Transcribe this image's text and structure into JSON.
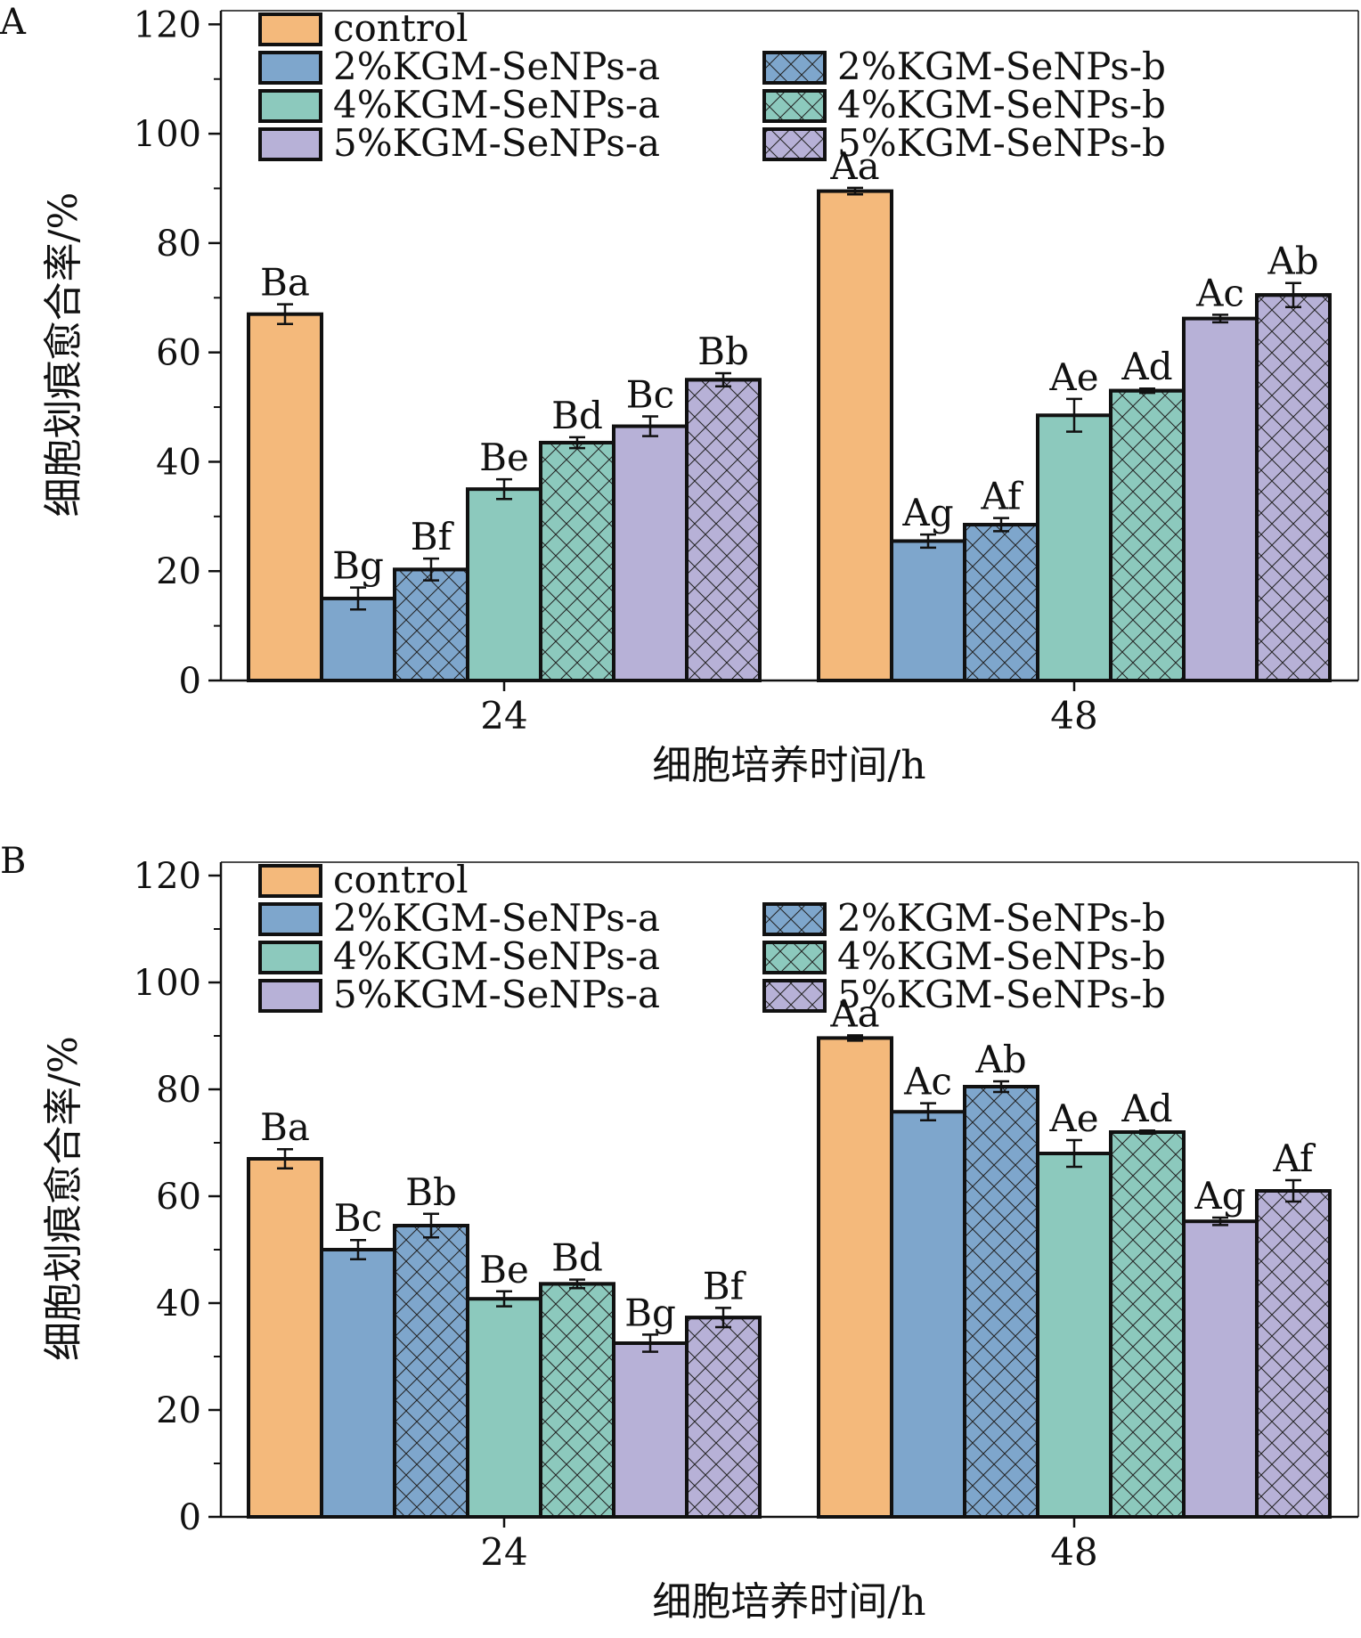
{
  "colors": {
    "control": "#f4b97b",
    "group_2": "#7ea6cc",
    "group_4": "#8cc9bd",
    "group_5": "#b7b1d7",
    "stroke": "#111111"
  },
  "chart_data": [
    {
      "panel_label": "A",
      "type": "bar",
      "xlabel": "细胞培养时间/h",
      "ylabel": "细胞划痕愈合率/%",
      "categories": [
        "24",
        "48"
      ],
      "ylim": [
        0,
        120
      ],
      "yticks": [
        0,
        20,
        40,
        60,
        80,
        100,
        120
      ],
      "legend_position": "top",
      "series": [
        {
          "name": "control",
          "color": "#f4b97b",
          "hatch": false,
          "values": [
            67,
            89.5
          ],
          "errors": [
            1.8,
            0.6
          ],
          "labels": [
            "Ba",
            "Aa"
          ]
        },
        {
          "name": "2%KGM-SeNPs-a",
          "color": "#7ea6cc",
          "hatch": false,
          "values": [
            15,
            25.5
          ],
          "errors": [
            2.0,
            1.2
          ],
          "labels": [
            "Bg",
            "Ag"
          ]
        },
        {
          "name": "2%KGM-SeNPs-b",
          "color": "#7ea6cc",
          "hatch": true,
          "values": [
            20.3,
            28.5
          ],
          "errors": [
            2.0,
            1.2
          ],
          "labels": [
            "Bf",
            "Af"
          ]
        },
        {
          "name": "4%KGM-SeNPs-a",
          "color": "#8cc9bd",
          "hatch": false,
          "values": [
            35,
            48.5
          ],
          "errors": [
            1.8,
            3.0
          ],
          "labels": [
            "Be",
            "Ae"
          ]
        },
        {
          "name": "4%KGM-SeNPs-b",
          "color": "#8cc9bd",
          "hatch": true,
          "values": [
            43.5,
            53
          ],
          "errors": [
            1.0,
            0.4
          ],
          "labels": [
            "Bd",
            "Ad"
          ]
        },
        {
          "name": "5%KGM-SeNPs-a",
          "color": "#b7b1d7",
          "hatch": false,
          "values": [
            46.5,
            66.2
          ],
          "errors": [
            1.8,
            0.7
          ],
          "labels": [
            "Bc",
            "Ac"
          ]
        },
        {
          "name": "5%KGM-SeNPs-b",
          "color": "#b7b1d7",
          "hatch": true,
          "values": [
            55,
            70.5
          ],
          "errors": [
            1.2,
            2.2
          ],
          "labels": [
            "Bb",
            "Ab"
          ]
        }
      ]
    },
    {
      "panel_label": "B",
      "type": "bar",
      "xlabel": "细胞培养时间/h",
      "ylabel": "细胞划痕愈合率/%",
      "categories": [
        "24",
        "48"
      ],
      "ylim": [
        0,
        120
      ],
      "yticks": [
        0,
        20,
        40,
        60,
        80,
        100,
        120
      ],
      "legend_position": "top",
      "series": [
        {
          "name": "control",
          "color": "#f4b97b",
          "hatch": false,
          "values": [
            67,
            89.6
          ],
          "errors": [
            1.8,
            0.5
          ],
          "labels": [
            "Ba",
            "Aa"
          ]
        },
        {
          "name": "2%KGM-SeNPs-a",
          "color": "#7ea6cc",
          "hatch": false,
          "values": [
            50,
            75.8
          ],
          "errors": [
            1.8,
            1.6
          ],
          "labels": [
            "Bc",
            "Ac"
          ]
        },
        {
          "name": "2%KGM-SeNPs-b",
          "color": "#7ea6cc",
          "hatch": true,
          "values": [
            54.5,
            80.5
          ],
          "errors": [
            2.2,
            1.0
          ],
          "labels": [
            "Bb",
            "Ab"
          ]
        },
        {
          "name": "4%KGM-SeNPs-a",
          "color": "#8cc9bd",
          "hatch": false,
          "values": [
            40.8,
            68
          ],
          "errors": [
            1.4,
            2.5
          ],
          "labels": [
            "Be",
            "Ae"
          ]
        },
        {
          "name": "4%KGM-SeNPs-b",
          "color": "#8cc9bd",
          "hatch": true,
          "values": [
            43.6,
            72
          ],
          "errors": [
            0.8,
            0.3
          ],
          "labels": [
            "Bd",
            "Ad"
          ]
        },
        {
          "name": "5%KGM-SeNPs-a",
          "color": "#b7b1d7",
          "hatch": false,
          "values": [
            32.5,
            55.3
          ],
          "errors": [
            1.6,
            0.7
          ],
          "labels": [
            "Bg",
            "Ag"
          ]
        },
        {
          "name": "5%KGM-SeNPs-b",
          "color": "#b7b1d7",
          "hatch": true,
          "values": [
            37.3,
            61
          ],
          "errors": [
            1.8,
            2.0
          ],
          "labels": [
            "Bf",
            "Af"
          ]
        }
      ]
    }
  ]
}
